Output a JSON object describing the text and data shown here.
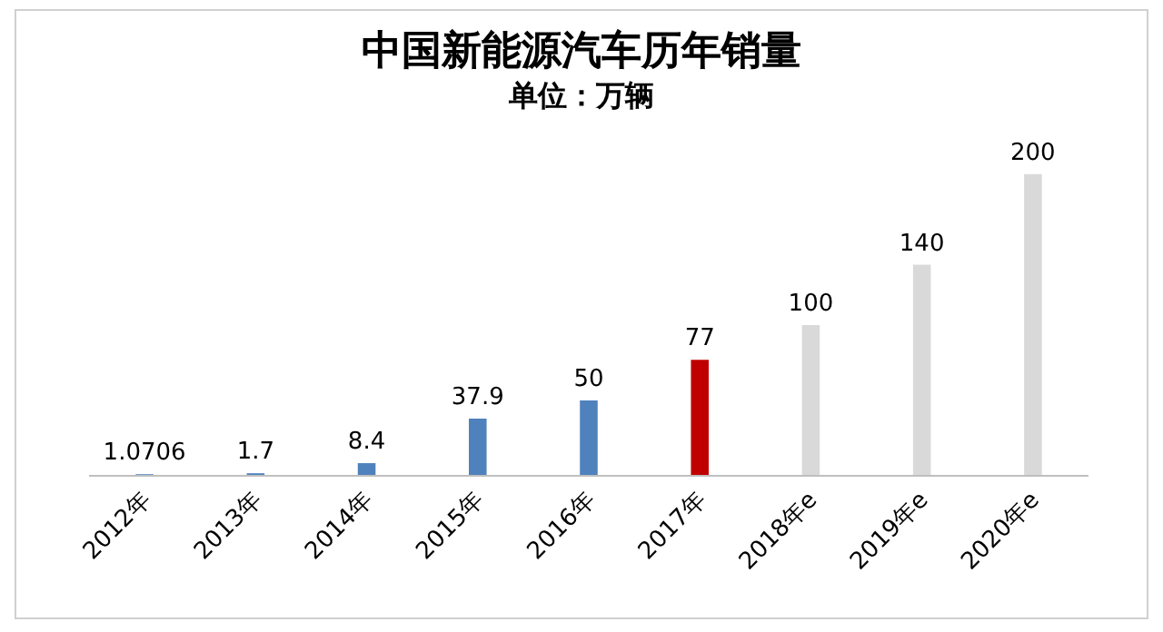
{
  "chart_data": {
    "type": "bar",
    "title": "中国新能源汽车历年销量",
    "subtitle": "单位：万辆",
    "categories": [
      "2012年",
      "2013年",
      "2014年",
      "2015年",
      "2016年",
      "2017年",
      "2018年e",
      "2019年e",
      "2020年e"
    ],
    "values": [
      1.0706,
      1.7,
      8.4,
      37.9,
      50,
      77,
      100,
      140,
      200
    ],
    "colors": [
      "#4f81bd",
      "#4f81bd",
      "#4f81bd",
      "#4f81bd",
      "#4f81bd",
      "#c00000",
      "#d9d9d9",
      "#d9d9d9",
      "#d9d9d9"
    ],
    "data_labels": true,
    "grid": false,
    "legend": false
  }
}
